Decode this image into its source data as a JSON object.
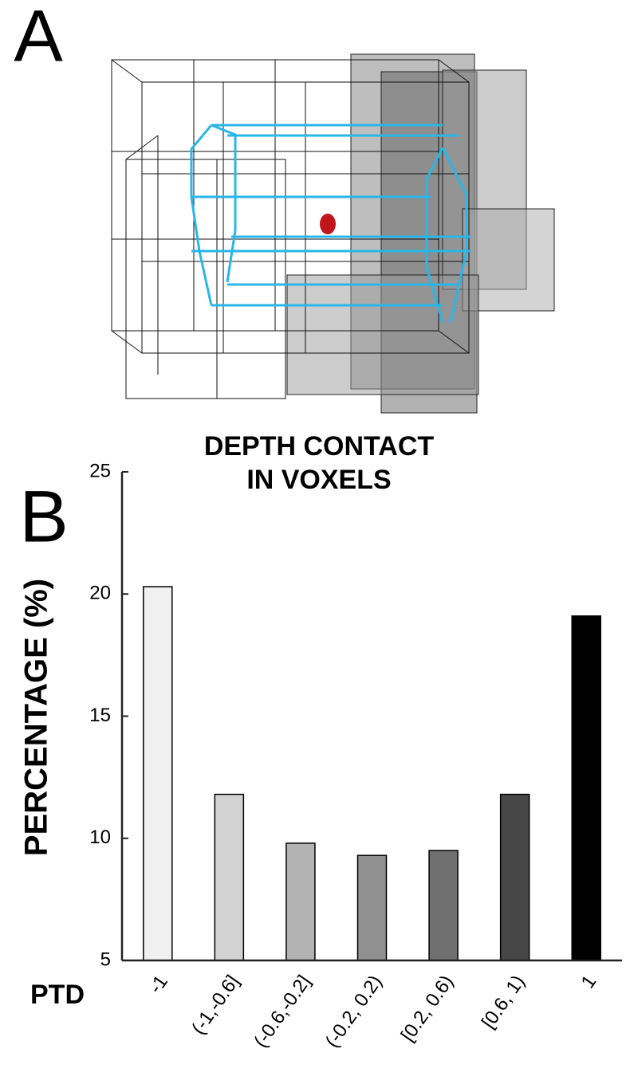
{
  "panel_a": {
    "label": "A",
    "caption": [
      "DEPTH CONTACT",
      "IN VOXELS"
    ]
  },
  "panel_b_label": "B",
  "chart_data": {
    "type": "bar",
    "ylabel": "PERCENTAGE (%)",
    "xlabel": "PTD",
    "categories": [
      "-1",
      "(-1,-0.6]",
      "(-0.6,-0.2]",
      "(-0.2, 0.2)",
      "[0.2, 0.6)",
      "[0.6, 1)",
      "1"
    ],
    "values": [
      20.3,
      11.8,
      9.8,
      9.3,
      9.5,
      11.8,
      19.1
    ],
    "colors": [
      "#f0f0f0",
      "#d3d3d3",
      "#b3b3b3",
      "#909090",
      "#707070",
      "#474747",
      "#000000"
    ],
    "ylim": [
      5,
      25
    ],
    "yticks": [
      5,
      10,
      15,
      20,
      25
    ]
  }
}
